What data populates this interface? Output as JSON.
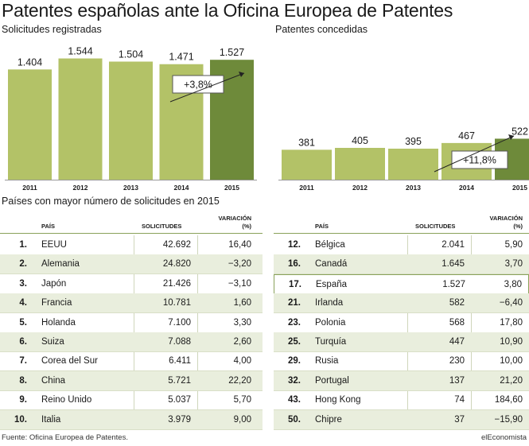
{
  "title": "Patentes españolas ante la Oficina Europea de Patentes",
  "colors": {
    "bar": "#b3c267",
    "bar_last": "#6e8a3a",
    "axis": "#9a9a9a",
    "row_alt": "#e9eedd",
    "accent_line": "#8aa25a"
  },
  "chart_data": [
    {
      "type": "bar",
      "title": "Solicitudes registradas",
      "categories": [
        "2011",
        "2012",
        "2013",
        "2014",
        "2015"
      ],
      "values": [
        1404,
        1544,
        1504,
        1471,
        1527
      ],
      "value_labels": [
        "1.404",
        "1.544",
        "1.504",
        "1.471",
        "1.527"
      ],
      "ylim": [
        0,
        1600
      ],
      "grid": false,
      "annotation": "+3,8%"
    },
    {
      "type": "bar",
      "title": "Patentes concedidas",
      "categories": [
        "2011",
        "2012",
        "2013",
        "2014",
        "2015"
      ],
      "values": [
        381,
        405,
        395,
        467,
        522
      ],
      "value_labels": [
        "381",
        "405",
        "395",
        "467",
        "522"
      ],
      "ylim": [
        0,
        1600
      ],
      "grid": false,
      "annotation": "+11,8%"
    }
  ],
  "table": {
    "title": "Países con mayor número de solicitudes en 2015",
    "headers": {
      "pais": "PAÍS",
      "solicitudes": "SOLICITUDES",
      "variacion": "VARIACIÓN",
      "variacion_unit": "(%)"
    },
    "left_rows": [
      {
        "rank": "1.",
        "pais": "EEUU",
        "solicitudes": "42.692",
        "variacion": "16,40"
      },
      {
        "rank": "2.",
        "pais": "Alemania",
        "solicitudes": "24.820",
        "variacion": "−3,20"
      },
      {
        "rank": "3.",
        "pais": "Japón",
        "solicitudes": "21.426",
        "variacion": "−3,10"
      },
      {
        "rank": "4.",
        "pais": "Francia",
        "solicitudes": "10.781",
        "variacion": "1,60"
      },
      {
        "rank": "5.",
        "pais": "Holanda",
        "solicitudes": "7.100",
        "variacion": "3,30"
      },
      {
        "rank": "6.",
        "pais": "Suiza",
        "solicitudes": "7.088",
        "variacion": "2,60"
      },
      {
        "rank": "7.",
        "pais": "Corea del Sur",
        "solicitudes": "6.411",
        "variacion": "4,00"
      },
      {
        "rank": "8.",
        "pais": "China",
        "solicitudes": "5.721",
        "variacion": "22,20"
      },
      {
        "rank": "9.",
        "pais": "Reino Unido",
        "solicitudes": "5.037",
        "variacion": "5,70"
      },
      {
        "rank": "10.",
        "pais": "Italia",
        "solicitudes": "3.979",
        "variacion": "9,00"
      }
    ],
    "right_rows": [
      {
        "rank": "12.",
        "pais": "Bélgica",
        "solicitudes": "2.041",
        "variacion": "5,90"
      },
      {
        "rank": "16.",
        "pais": "Canadá",
        "solicitudes": "1.645",
        "variacion": "3,70"
      },
      {
        "rank": "17.",
        "pais": "España",
        "solicitudes": "1.527",
        "variacion": "3,80",
        "highlight": true
      },
      {
        "rank": "21.",
        "pais": "Irlanda",
        "solicitudes": "582",
        "variacion": "−6,40"
      },
      {
        "rank": "23.",
        "pais": "Polonia",
        "solicitudes": "568",
        "variacion": "17,80"
      },
      {
        "rank": "25.",
        "pais": "Turquía",
        "solicitudes": "447",
        "variacion": "10,90"
      },
      {
        "rank": "29.",
        "pais": "Rusia",
        "solicitudes": "230",
        "variacion": "10,00"
      },
      {
        "rank": "32.",
        "pais": "Portugal",
        "solicitudes": "137",
        "variacion": "21,20"
      },
      {
        "rank": "43.",
        "pais": "Hong Kong",
        "solicitudes": "74",
        "variacion": "184,60"
      },
      {
        "rank": "50.",
        "pais": "Chipre",
        "solicitudes": "37",
        "variacion": "−15,90"
      }
    ]
  },
  "footer": {
    "source": "Fuente: Oficina Europea de Patentes.",
    "brand": "elEconomista"
  }
}
